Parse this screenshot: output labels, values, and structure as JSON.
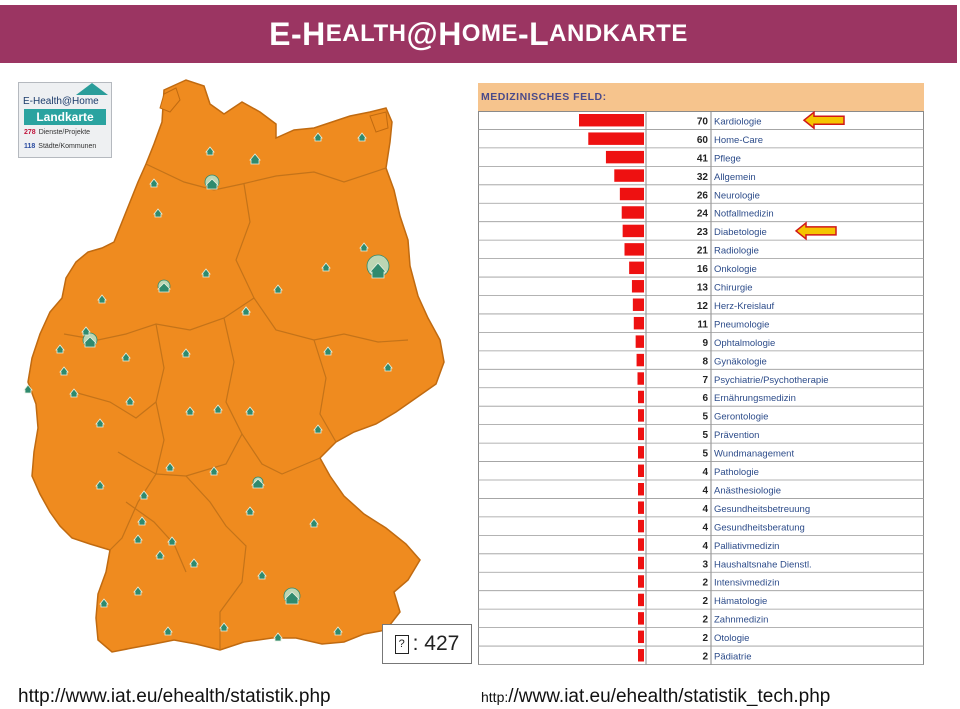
{
  "header": {
    "title_parts": [
      "E-H",
      "EALTH",
      "@H",
      "OME",
      "-L",
      "ANDKARTE"
    ]
  },
  "map": {
    "legend": {
      "brand": "E-Health@Home",
      "subtitle": "Landkarte",
      "row1_count": "278",
      "row1_label": "Dienste/Projekte",
      "row2_count": "118",
      "row2_label": "Städte/Kommunen"
    },
    "total_glyph": "?",
    "total_label": ": 427",
    "colors": {
      "land": "#ef8b1f",
      "border": "#c06a10",
      "marker": "#2f8a6e"
    },
    "marker_icon": "house-marker-icon"
  },
  "chart_data": {
    "type": "bar",
    "orientation": "horizontal",
    "title": "MEDIZINISCHES FELD:",
    "bar_color": "#ee1111",
    "highlight_arrow_color": "#f5c400",
    "highlighted": [
      "Kardiologie",
      "Diabetologie"
    ],
    "xlim": [
      0,
      70
    ],
    "categories": [
      "Kardiologie",
      "Home-Care",
      "Pflege",
      "Allgemein",
      "Neurologie",
      "Notfallmedizin",
      "Diabetologie",
      "Radiologie",
      "Onkologie",
      "Chirurgie",
      "Herz-Kreislauf",
      "Pneumologie",
      "Ophtalmologie",
      "Gynäkologie",
      "Psychiatrie/Psychotherapie",
      "Ernährungsmedizin",
      "Gerontologie",
      "Prävention",
      "Wundmanagement",
      "Pathologie",
      "Anästhesiologie",
      "Gesundheitsbetreuung",
      "Gesundheitsberatung",
      "Palliativmedizin",
      "Haushaltsnahe Dienstl.",
      "Intensivmedizin",
      "Hämatologie",
      "Zahnmedizin",
      "Otologie",
      "Pädiatrie"
    ],
    "values": [
      70,
      60,
      41,
      32,
      26,
      24,
      23,
      21,
      16,
      13,
      12,
      11,
      9,
      8,
      7,
      6,
      5,
      5,
      5,
      4,
      4,
      4,
      4,
      4,
      3,
      2,
      2,
      2,
      2,
      2
    ]
  },
  "footer": {
    "left_url": "http://www.iat.eu/ehealth/statistik.php",
    "right_prefix": "http:",
    "right_rest": "//www.iat.eu/ehealth/statistik_tech.php"
  }
}
